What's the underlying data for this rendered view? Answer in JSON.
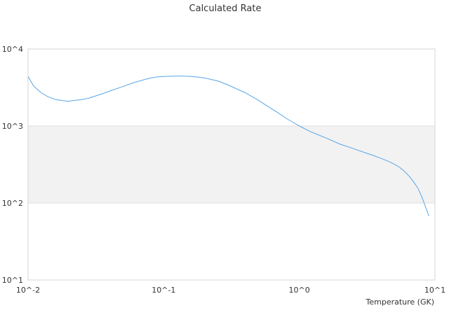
{
  "chart_data": {
    "type": "line",
    "title": "Calculated Rate",
    "xlabel": "Temperature (GK)",
    "ylabel": "",
    "xscale": "log",
    "yscale": "log",
    "xlim": [
      0.01,
      10
    ],
    "ylim": [
      10,
      10000
    ],
    "x_tick_labels": [
      "10^-2",
      "10^-1",
      "10^0",
      "10^1"
    ],
    "y_tick_labels": [
      "10^1",
      "10^2",
      "10^3",
      "10^4"
    ],
    "grid": "horizontal",
    "band_fill": "#f2f2f2",
    "line_color": "#5aa5e6",
    "legend": "none",
    "series": [
      {
        "x": [
          0.01,
          0.011,
          0.0125,
          0.014,
          0.016,
          0.018,
          0.02,
          0.022,
          0.025,
          0.028,
          0.032,
          0.036,
          0.04,
          0.045,
          0.05,
          0.06,
          0.07,
          0.08,
          0.09,
          0.1,
          0.12,
          0.14,
          0.16,
          0.18,
          0.2,
          0.25,
          0.3,
          0.35,
          0.4,
          0.5,
          0.6,
          0.7,
          0.8,
          1.0,
          1.2,
          1.4,
          1.6,
          2.0,
          2.5,
          3.0,
          3.5,
          4.0,
          4.5,
          5.0,
          5.5,
          6.0,
          6.5,
          7.0,
          7.5,
          8.0,
          8.5,
          9.0
        ],
        "y": [
          4400,
          3300,
          2700,
          2400,
          2200,
          2140,
          2100,
          2150,
          2200,
          2300,
          2480,
          2650,
          2850,
          3050,
          3250,
          3650,
          3950,
          4200,
          4350,
          4400,
          4450,
          4450,
          4400,
          4300,
          4200,
          3850,
          3400,
          3000,
          2700,
          2150,
          1750,
          1480,
          1260,
          1000,
          850,
          760,
          690,
          580,
          510,
          455,
          415,
          380,
          350,
          320,
          290,
          255,
          220,
          185,
          155,
          120,
          90,
          68
        ]
      }
    ]
  }
}
